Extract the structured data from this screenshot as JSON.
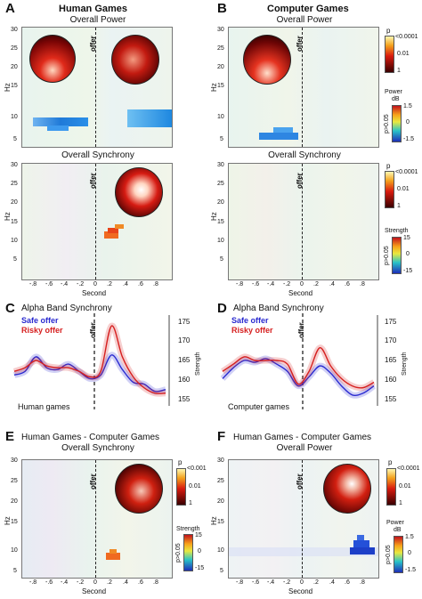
{
  "panels": {
    "A": {
      "letter": "A",
      "title": "Human Games",
      "power_title": "Overall Power",
      "sync_title": "Overall Synchrony"
    },
    "B": {
      "letter": "B",
      "title": "Computer Games",
      "power_title": "Overall Power",
      "sync_title": "Overall Synchrony"
    },
    "C": {
      "letter": "C",
      "title": "Alpha Band Synchrony",
      "legend_safe": "Safe offer",
      "legend_risky": "Risky offer",
      "caption": "Human games"
    },
    "D": {
      "letter": "D",
      "title": "Alpha Band Synchrony",
      "legend_safe": "Safe offer",
      "legend_risky": "Risky offer",
      "caption": "Computer games"
    },
    "E": {
      "letter": "E",
      "title": "Human Games - Computer Games",
      "subtitle": "Overall Synchrony"
    },
    "F": {
      "letter": "F",
      "title": "Human Games - Computer Games",
      "subtitle": "Overall Power"
    }
  },
  "labels": {
    "offer": "offer",
    "hz": "Hz",
    "second": "Second",
    "strength": "Strength",
    "p": "p",
    "power": "Power",
    "db": "dB",
    "p_gt": "p>0.05"
  },
  "axis": {
    "hz_ticks": [
      "30",
      "25",
      "20",
      "15",
      "10",
      "5"
    ],
    "sec_ticks": [
      "-.8",
      "-.6",
      "-.4",
      "-.2",
      "0",
      ".2",
      ".4",
      ".6",
      ".8"
    ],
    "strength_ticks": [
      "175",
      "170",
      "165",
      "160",
      "155"
    ]
  },
  "colorbars": {
    "p_top": [
      "<0.0001",
      "0.01",
      "1"
    ],
    "p_top_e": [
      "<0.001",
      "0.01",
      "1"
    ],
    "p_top_f": [
      "<0.0001",
      "0.01",
      "1"
    ],
    "power_ticks": [
      "1.5",
      "0",
      "-1.5"
    ],
    "strength_ticks": [
      "15",
      "0",
      "-15"
    ]
  },
  "chart_data": [
    {
      "type": "line",
      "title": "Alpha Band Synchrony",
      "xlabel": "",
      "ylabel": "Strength",
      "ylim": [
        153,
        177
      ],
      "series": [
        {
          "name": "Safe offer",
          "color": "#2a2ad0",
          "values": [
            161,
            162,
            166,
            163,
            162.5,
            164,
            162,
            160,
            161,
            166.5,
            162.5,
            159,
            158.5,
            156.5,
            157
          ]
        },
        {
          "name": "Risky offer",
          "color": "#d62020",
          "values": [
            162,
            163,
            165,
            163.5,
            163,
            163,
            162,
            160.5,
            162,
            174.5,
            166,
            160.5,
            157.5,
            156,
            156
          ]
        }
      ],
      "caption": "Human games"
    },
    {
      "type": "line",
      "title": "Alpha Band Synchrony",
      "xlabel": "",
      "ylabel": "Strength",
      "ylim": [
        153,
        177
      ],
      "series": [
        {
          "name": "Safe offer",
          "color": "#2a2ad0",
          "values": [
            160,
            163,
            165,
            164.5,
            165.5,
            164,
            162,
            158,
            160.5,
            163.5,
            161.5,
            158,
            155.5,
            156,
            158
          ]
        },
        {
          "name": "Risky offer",
          "color": "#d62020",
          "values": [
            162,
            164,
            166,
            165,
            165,
            165,
            164,
            158.5,
            162,
            168.5,
            163.5,
            160,
            158,
            157.5,
            159
          ]
        }
      ],
      "caption": "Computer games"
    }
  ]
}
